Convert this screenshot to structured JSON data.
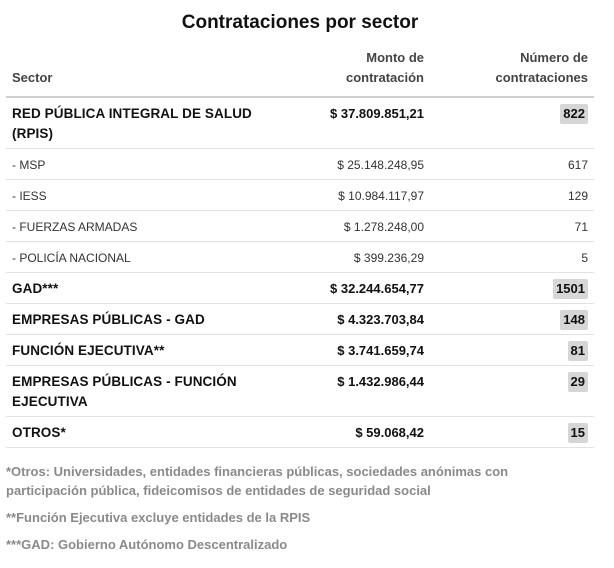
{
  "title": "Contrataciones por sector",
  "headers": {
    "sector": "Sector",
    "amount": "Monto de contratación",
    "count": "Número de contrataciones"
  },
  "rows": [
    {
      "sector": "RED PÚBLICA INTEGRAL DE SALUD (RPIS)",
      "amount": "$ 37.809.851,21",
      "count": "822"
    },
    {
      "sector": "- MSP",
      "amount": "$ 25.148.248,95",
      "count": "617"
    },
    {
      "sector": "- IESS",
      "amount": "$ 10.984.117,97",
      "count": "129"
    },
    {
      "sector": "- FUERZAS ARMADAS",
      "amount": "$ 1.278.248,00",
      "count": "71"
    },
    {
      "sector": "- POLICÍA NACIONAL",
      "amount": "$ 399.236,29",
      "count": "5"
    },
    {
      "sector": "GAD***",
      "amount": "$ 32.244.654,77",
      "count": "1501"
    },
    {
      "sector": "EMPRESAS PÚBLICAS - GAD",
      "amount": "$ 4.323.703,84",
      "count": "148"
    },
    {
      "sector": "FUNCIÓN EJECUTIVA**",
      "amount": "$ 3.741.659,74",
      "count": "81"
    },
    {
      "sector": "EMPRESAS PÚBLICAS - FUNCIÓN EJECUTIVA",
      "amount": "$ 1.432.986,44",
      "count": "29"
    },
    {
      "sector": "OTROS*",
      "amount": "$ 59.068,42",
      "count": "15"
    }
  ],
  "notes": [
    "*Otros: Universidades, entidades financieras públicas, sociedades anónimas con participación pública, fideicomisos de entidades de seguridad social",
    "**Función Ejecutiva excluye entidades de la RPIS",
    "***GAD: Gobierno Autónomo Descentralizado"
  ]
}
